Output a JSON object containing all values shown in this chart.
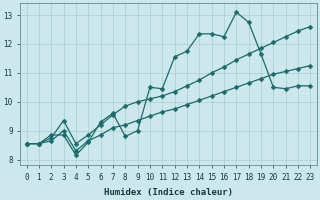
{
  "xlabel": "Humidex (Indice chaleur)",
  "background_color": "#cce8ec",
  "grid_color": "#aacccc",
  "line_color": "#1a6b6b",
  "xlim": [
    -0.5,
    23.5
  ],
  "ylim": [
    7.8,
    13.4
  ],
  "xticks": [
    0,
    1,
    2,
    3,
    4,
    5,
    6,
    7,
    8,
    9,
    10,
    11,
    12,
    13,
    14,
    15,
    16,
    17,
    18,
    19,
    20,
    21,
    22,
    23
  ],
  "yticks": [
    8,
    9,
    10,
    11,
    12,
    13
  ],
  "line1_x": [
    0,
    1,
    2,
    3,
    4,
    5,
    6,
    7,
    8,
    9,
    10,
    11,
    12,
    13,
    14,
    15,
    16,
    17,
    18,
    19,
    20,
    21,
    22,
    23
  ],
  "line1_y": [
    8.55,
    8.55,
    8.85,
    8.85,
    8.15,
    8.6,
    9.3,
    9.6,
    8.8,
    9.0,
    10.5,
    10.45,
    11.55,
    11.75,
    12.35,
    12.35,
    12.25,
    13.1,
    12.75,
    11.65,
    10.5,
    10.45,
    10.55,
    10.55
  ],
  "line2_x": [
    0,
    1,
    2,
    3,
    4,
    5,
    6,
    7,
    8,
    9,
    10,
    11,
    12,
    13,
    14,
    15,
    16,
    17,
    18,
    19,
    20,
    21,
    22,
    23
  ],
  "line2_y": [
    8.55,
    8.55,
    8.75,
    9.35,
    8.55,
    8.85,
    9.2,
    9.55,
    9.85,
    10.0,
    10.1,
    10.2,
    10.35,
    10.55,
    10.75,
    11.0,
    11.2,
    11.45,
    11.65,
    11.85,
    12.05,
    12.25,
    12.45,
    12.6
  ],
  "line3_x": [
    0,
    1,
    2,
    3,
    4,
    5,
    6,
    7,
    8,
    9,
    10,
    11,
    12,
    13,
    14,
    15,
    16,
    17,
    18,
    19,
    20,
    21,
    22,
    23
  ],
  "line3_y": [
    8.55,
    8.55,
    8.65,
    9.0,
    8.3,
    8.65,
    8.85,
    9.1,
    9.2,
    9.35,
    9.5,
    9.65,
    9.75,
    9.9,
    10.05,
    10.2,
    10.35,
    10.5,
    10.65,
    10.8,
    10.95,
    11.05,
    11.15,
    11.25
  ]
}
